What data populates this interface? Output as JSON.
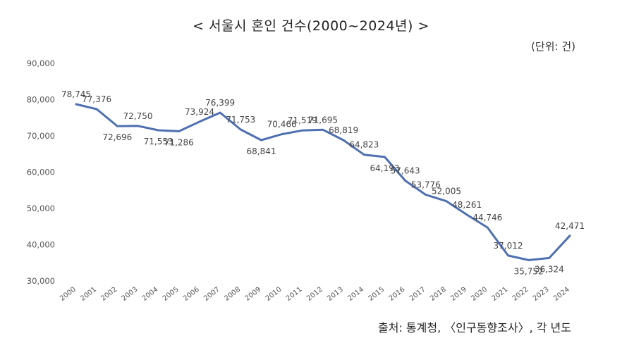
{
  "chart_data": {
    "type": "line",
    "title": "< 서울시 혼인 건수(2000~2024년) >",
    "unit_label": "(단위: 건)",
    "source": "출처: 통계청, 〈인구동향조사〉, 각 년도",
    "xlabel": "",
    "ylabel": "",
    "ylim": [
      30000,
      90000
    ],
    "yticks": [
      "30,000",
      "40,000",
      "50,000",
      "60,000",
      "70,000",
      "80,000",
      "90,000"
    ],
    "grid": false,
    "legend": "none",
    "line_color": "#4e6fb0",
    "x": [
      "2000",
      "2001",
      "2002",
      "2003",
      "2004",
      "2005",
      "2006",
      "2007",
      "2008",
      "2009",
      "2010",
      "2011",
      "2012",
      "2013",
      "2014",
      "2015",
      "2016",
      "2017",
      "2018",
      "2019",
      "2020",
      "2021",
      "2022",
      "2023",
      "2024"
    ],
    "series": [
      {
        "values": [
          78745,
          77376,
          72696,
          72750,
          71553,
          71286,
          73924,
          76399,
          71753,
          68841,
          70466,
          71519,
          71695,
          68819,
          64823,
          64193,
          57643,
          53776,
          52005,
          48261,
          44746,
          37012,
          35752,
          36324,
          42471
        ],
        "data_labels": [
          "78,745",
          "77,376",
          "72,696",
          "72,750",
          "71,553",
          "71,286",
          "73,924",
          "76,399",
          "71,753",
          "68,841",
          "70,466",
          "71,519",
          "71,695",
          "68,819",
          "64,823",
          "64,193",
          "57,643",
          "53,776",
          "52,005",
          "48,261",
          "44,746",
          "37,012",
          "35,752",
          "36,324",
          "42,471"
        ]
      }
    ]
  }
}
